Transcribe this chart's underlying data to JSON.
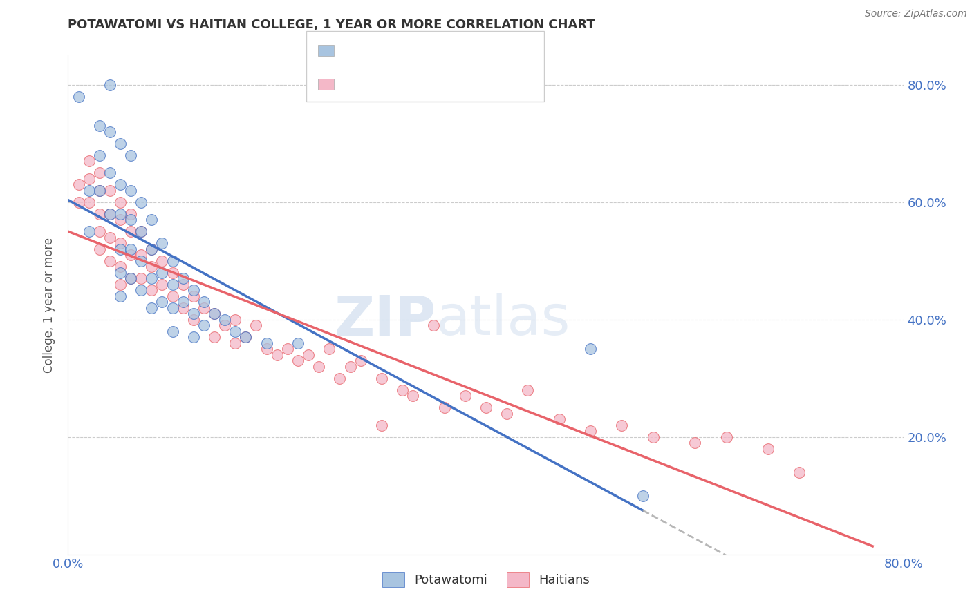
{
  "title": "POTAWATOMI VS HAITIAN COLLEGE, 1 YEAR OR MORE CORRELATION CHART",
  "source": "Source: ZipAtlas.com",
  "ylabel": "College, 1 year or more",
  "xlim": [
    0.0,
    0.8
  ],
  "ylim": [
    0.0,
    0.85
  ],
  "ytick_positions": [
    0.2,
    0.4,
    0.6,
    0.8
  ],
  "ytick_labels": [
    "20.0%",
    "40.0%",
    "60.0%",
    "80.0%"
  ],
  "color_blue": "#a8c4e0",
  "color_pink": "#f4b8c8",
  "line_blue": "#4472c4",
  "line_pink": "#e8636a",
  "line_gray": "#aaaaaa",
  "potawatomi_x": [
    0.01,
    0.02,
    0.02,
    0.03,
    0.03,
    0.03,
    0.04,
    0.04,
    0.04,
    0.04,
    0.05,
    0.05,
    0.05,
    0.05,
    0.05,
    0.05,
    0.06,
    0.06,
    0.06,
    0.06,
    0.06,
    0.07,
    0.07,
    0.07,
    0.07,
    0.08,
    0.08,
    0.08,
    0.08,
    0.09,
    0.09,
    0.09,
    0.1,
    0.1,
    0.1,
    0.1,
    0.11,
    0.11,
    0.12,
    0.12,
    0.12,
    0.13,
    0.13,
    0.14,
    0.15,
    0.16,
    0.17,
    0.19,
    0.22,
    0.5,
    0.55
  ],
  "potawatomi_y": [
    0.78,
    0.62,
    0.55,
    0.73,
    0.68,
    0.62,
    0.8,
    0.72,
    0.65,
    0.58,
    0.7,
    0.63,
    0.58,
    0.52,
    0.48,
    0.44,
    0.68,
    0.62,
    0.57,
    0.52,
    0.47,
    0.6,
    0.55,
    0.5,
    0.45,
    0.57,
    0.52,
    0.47,
    0.42,
    0.53,
    0.48,
    0.43,
    0.5,
    0.46,
    0.42,
    0.38,
    0.47,
    0.43,
    0.45,
    0.41,
    0.37,
    0.43,
    0.39,
    0.41,
    0.4,
    0.38,
    0.37,
    0.36,
    0.36,
    0.35,
    0.1
  ],
  "haitian_x": [
    0.01,
    0.01,
    0.02,
    0.02,
    0.02,
    0.03,
    0.03,
    0.03,
    0.03,
    0.03,
    0.04,
    0.04,
    0.04,
    0.04,
    0.05,
    0.05,
    0.05,
    0.05,
    0.05,
    0.06,
    0.06,
    0.06,
    0.06,
    0.07,
    0.07,
    0.07,
    0.08,
    0.08,
    0.08,
    0.09,
    0.09,
    0.1,
    0.1,
    0.11,
    0.11,
    0.12,
    0.12,
    0.13,
    0.14,
    0.14,
    0.15,
    0.16,
    0.16,
    0.17,
    0.18,
    0.19,
    0.2,
    0.21,
    0.22,
    0.23,
    0.24,
    0.25,
    0.26,
    0.27,
    0.28,
    0.3,
    0.3,
    0.32,
    0.33,
    0.35,
    0.36,
    0.38,
    0.4,
    0.42,
    0.44,
    0.47,
    0.5,
    0.53,
    0.56,
    0.6,
    0.63,
    0.67,
    0.7
  ],
  "haitian_y": [
    0.63,
    0.6,
    0.67,
    0.64,
    0.6,
    0.65,
    0.62,
    0.58,
    0.55,
    0.52,
    0.62,
    0.58,
    0.54,
    0.5,
    0.6,
    0.57,
    0.53,
    0.49,
    0.46,
    0.58,
    0.55,
    0.51,
    0.47,
    0.55,
    0.51,
    0.47,
    0.52,
    0.49,
    0.45,
    0.5,
    0.46,
    0.48,
    0.44,
    0.46,
    0.42,
    0.44,
    0.4,
    0.42,
    0.41,
    0.37,
    0.39,
    0.4,
    0.36,
    0.37,
    0.39,
    0.35,
    0.34,
    0.35,
    0.33,
    0.34,
    0.32,
    0.35,
    0.3,
    0.32,
    0.33,
    0.22,
    0.3,
    0.28,
    0.27,
    0.39,
    0.25,
    0.27,
    0.25,
    0.24,
    0.28,
    0.23,
    0.21,
    0.22,
    0.2,
    0.19,
    0.2,
    0.18,
    0.14
  ]
}
